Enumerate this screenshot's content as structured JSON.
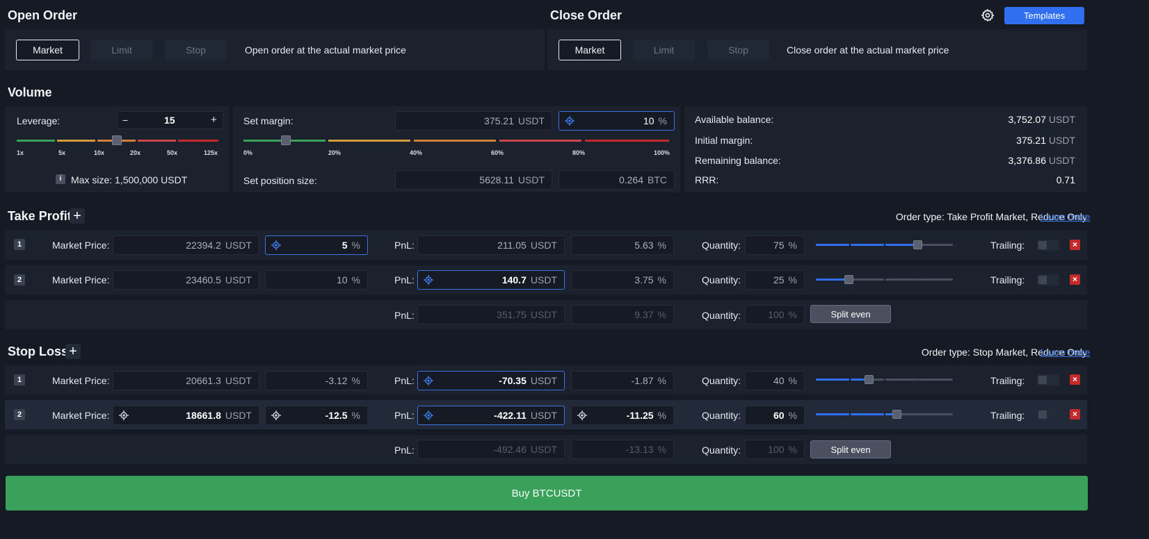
{
  "open_order": {
    "title": "Open Order",
    "tabs": [
      "Market",
      "Limit",
      "Stop"
    ],
    "description": "Open order at the actual market price"
  },
  "close_order": {
    "title": "Close Order",
    "tabs": [
      "Market",
      "Limit",
      "Stop"
    ],
    "description": "Close order at the actual market price",
    "templates_label": "Templates"
  },
  "volume": {
    "title": "Volume",
    "leverage_label": "Leverage:",
    "leverage_value": "15",
    "leverage_minus": "−",
    "leverage_plus": "+",
    "leverage_ticks": [
      "1x",
      "5x",
      "10x",
      "20x",
      "50x",
      "125x"
    ],
    "max_size": "Max size: 1,500,000 USDT",
    "info_glyph": "i",
    "set_margin_label": "Set margin:",
    "margin_value": "375.21",
    "margin_unit": "USDT",
    "margin_pct": "10",
    "pct_unit": "%",
    "margin_ticks": [
      "0%",
      "20%",
      "40%",
      "60%",
      "80%",
      "100%"
    ],
    "set_position_label": "Set position size:",
    "position_usdt": "5628.11",
    "position_usdt_unit": "USDT",
    "position_btc": "0.264",
    "position_btc_unit": "BTC",
    "info": [
      {
        "label": "Available balance:",
        "value": "3,752.07",
        "unit": "USDT"
      },
      {
        "label": "Initial margin:",
        "value": "375.21",
        "unit": "USDT"
      },
      {
        "label": "Remaining balance:",
        "value": "3,376.86",
        "unit": "USDT"
      },
      {
        "label": "RRR:",
        "value": "0.71",
        "unit": ""
      }
    ]
  },
  "take_profit": {
    "title": "Take Profit",
    "order_type_prefix": "Order type: Take Profit Market, Reduce Only",
    "learn_more": "Learn more",
    "rows": [
      {
        "num": "1",
        "price_label": "Market Price:",
        "price": "22394.2",
        "price_unit": "USDT",
        "pct": "5",
        "pct_unit": "%",
        "pnl_label": "PnL:",
        "pnl": "211.05",
        "pnl_unit": "USDT",
        "pnl_pct": "5.63",
        "pnl_pct_unit": "%",
        "qty_label": "Quantity:",
        "qty": "75",
        "qty_unit": "%",
        "trailing_label": "Trailing:",
        "del": "×"
      },
      {
        "num": "2",
        "price_label": "Market Price:",
        "price": "23460.5",
        "price_unit": "USDT",
        "pct": "10",
        "pct_unit": "%",
        "pnl_label": "PnL:",
        "pnl": "140.7",
        "pnl_unit": "USDT",
        "pnl_pct": "3.75",
        "pnl_pct_unit": "%",
        "qty_label": "Quantity:",
        "qty": "25",
        "qty_unit": "%",
        "trailing_label": "Trailing:",
        "del": "×"
      }
    ],
    "total": {
      "pnl_label": "PnL:",
      "pnl": "351.75",
      "pnl_unit": "USDT",
      "pnl_pct": "9.37",
      "pnl_pct_unit": "%",
      "qty_label": "Quantity:",
      "qty": "100",
      "qty_unit": "%",
      "split_label": "Split even"
    }
  },
  "stop_loss": {
    "title": "Stop Loss",
    "order_type_prefix": "Order type: Stop Market, Reduce Only",
    "learn_more": "Learn more",
    "rows": [
      {
        "num": "1",
        "price_label": "Market Price:",
        "price": "20661.3",
        "price_unit": "USDT",
        "pct": "-3.12",
        "pct_unit": "%",
        "pnl_label": "PnL:",
        "pnl": "-70.35",
        "pnl_unit": "USDT",
        "pnl_pct": "-1.87",
        "pnl_pct_unit": "%",
        "qty_label": "Quantity:",
        "qty": "40",
        "qty_unit": "%",
        "trailing_label": "Trailing:",
        "del": "×"
      },
      {
        "num": "2",
        "price_label": "Market Price:",
        "price": "18661.8",
        "price_unit": "USDT",
        "pct": "-12.5",
        "pct_unit": "%",
        "pnl_label": "PnL:",
        "pnl": "-422.11",
        "pnl_unit": "USDT",
        "pnl_pct": "-11.25",
        "pnl_pct_unit": "%",
        "qty_label": "Quantity:",
        "qty": "60",
        "qty_unit": "%",
        "trailing_label": "Trailing:",
        "del": "×"
      }
    ],
    "total": {
      "pnl_label": "PnL:",
      "pnl": "-492.46",
      "pnl_unit": "USDT",
      "pnl_pct": "-13.13",
      "pnl_pct_unit": "%",
      "qty_label": "Quantity:",
      "qty": "100",
      "qty_unit": "%",
      "split_label": "Split even"
    }
  },
  "buy_button": "Buy BTCUSDT",
  "colors": {
    "accent": "#2f6ff0",
    "buy": "#3aa15b",
    "delete": "#c42a2a",
    "focus_border": "#3d72e0"
  }
}
